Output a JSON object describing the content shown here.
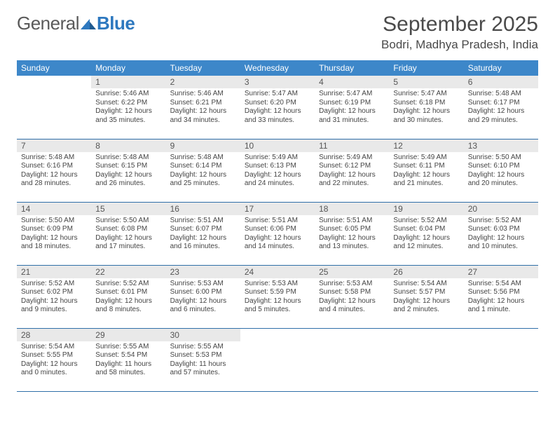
{
  "logo": {
    "part1": "General",
    "part2": "Blue"
  },
  "title": "September 2025",
  "subtitle": "Bodri, Madhya Pradesh, India",
  "colors": {
    "header_bg": "#3d87c9",
    "header_text": "#ffffff",
    "daynum_bg": "#e9e9e9",
    "border": "#2f6fa8",
    "text": "#444444",
    "logo_blue": "#2d78bf",
    "logo_grey": "#5a5a5a"
  },
  "typography": {
    "title_fontsize": 30,
    "subtitle_fontsize": 17,
    "th_fontsize": 12,
    "daynum_fontsize": 12,
    "body_fontsize": 10
  },
  "weekday_labels": [
    "Sunday",
    "Monday",
    "Tuesday",
    "Wednesday",
    "Thursday",
    "Friday",
    "Saturday"
  ],
  "first_weekday_index": 1,
  "days": [
    {
      "n": 1,
      "sunrise": "5:46 AM",
      "sunset": "6:22 PM",
      "daylight": "12 hours and 35 minutes."
    },
    {
      "n": 2,
      "sunrise": "5:46 AM",
      "sunset": "6:21 PM",
      "daylight": "12 hours and 34 minutes."
    },
    {
      "n": 3,
      "sunrise": "5:47 AM",
      "sunset": "6:20 PM",
      "daylight": "12 hours and 33 minutes."
    },
    {
      "n": 4,
      "sunrise": "5:47 AM",
      "sunset": "6:19 PM",
      "daylight": "12 hours and 31 minutes."
    },
    {
      "n": 5,
      "sunrise": "5:47 AM",
      "sunset": "6:18 PM",
      "daylight": "12 hours and 30 minutes."
    },
    {
      "n": 6,
      "sunrise": "5:48 AM",
      "sunset": "6:17 PM",
      "daylight": "12 hours and 29 minutes."
    },
    {
      "n": 7,
      "sunrise": "5:48 AM",
      "sunset": "6:16 PM",
      "daylight": "12 hours and 28 minutes."
    },
    {
      "n": 8,
      "sunrise": "5:48 AM",
      "sunset": "6:15 PM",
      "daylight": "12 hours and 26 minutes."
    },
    {
      "n": 9,
      "sunrise": "5:48 AM",
      "sunset": "6:14 PM",
      "daylight": "12 hours and 25 minutes."
    },
    {
      "n": 10,
      "sunrise": "5:49 AM",
      "sunset": "6:13 PM",
      "daylight": "12 hours and 24 minutes."
    },
    {
      "n": 11,
      "sunrise": "5:49 AM",
      "sunset": "6:12 PM",
      "daylight": "12 hours and 22 minutes."
    },
    {
      "n": 12,
      "sunrise": "5:49 AM",
      "sunset": "6:11 PM",
      "daylight": "12 hours and 21 minutes."
    },
    {
      "n": 13,
      "sunrise": "5:50 AM",
      "sunset": "6:10 PM",
      "daylight": "12 hours and 20 minutes."
    },
    {
      "n": 14,
      "sunrise": "5:50 AM",
      "sunset": "6:09 PM",
      "daylight": "12 hours and 18 minutes."
    },
    {
      "n": 15,
      "sunrise": "5:50 AM",
      "sunset": "6:08 PM",
      "daylight": "12 hours and 17 minutes."
    },
    {
      "n": 16,
      "sunrise": "5:51 AM",
      "sunset": "6:07 PM",
      "daylight": "12 hours and 16 minutes."
    },
    {
      "n": 17,
      "sunrise": "5:51 AM",
      "sunset": "6:06 PM",
      "daylight": "12 hours and 14 minutes."
    },
    {
      "n": 18,
      "sunrise": "5:51 AM",
      "sunset": "6:05 PM",
      "daylight": "12 hours and 13 minutes."
    },
    {
      "n": 19,
      "sunrise": "5:52 AM",
      "sunset": "6:04 PM",
      "daylight": "12 hours and 12 minutes."
    },
    {
      "n": 20,
      "sunrise": "5:52 AM",
      "sunset": "6:03 PM",
      "daylight": "12 hours and 10 minutes."
    },
    {
      "n": 21,
      "sunrise": "5:52 AM",
      "sunset": "6:02 PM",
      "daylight": "12 hours and 9 minutes."
    },
    {
      "n": 22,
      "sunrise": "5:52 AM",
      "sunset": "6:01 PM",
      "daylight": "12 hours and 8 minutes."
    },
    {
      "n": 23,
      "sunrise": "5:53 AM",
      "sunset": "6:00 PM",
      "daylight": "12 hours and 6 minutes."
    },
    {
      "n": 24,
      "sunrise": "5:53 AM",
      "sunset": "5:59 PM",
      "daylight": "12 hours and 5 minutes."
    },
    {
      "n": 25,
      "sunrise": "5:53 AM",
      "sunset": "5:58 PM",
      "daylight": "12 hours and 4 minutes."
    },
    {
      "n": 26,
      "sunrise": "5:54 AM",
      "sunset": "5:57 PM",
      "daylight": "12 hours and 2 minutes."
    },
    {
      "n": 27,
      "sunrise": "5:54 AM",
      "sunset": "5:56 PM",
      "daylight": "12 hours and 1 minute."
    },
    {
      "n": 28,
      "sunrise": "5:54 AM",
      "sunset": "5:55 PM",
      "daylight": "12 hours and 0 minutes."
    },
    {
      "n": 29,
      "sunrise": "5:55 AM",
      "sunset": "5:54 PM",
      "daylight": "11 hours and 58 minutes."
    },
    {
      "n": 30,
      "sunrise": "5:55 AM",
      "sunset": "5:53 PM",
      "daylight": "11 hours and 57 minutes."
    }
  ],
  "labels": {
    "sunrise": "Sunrise:",
    "sunset": "Sunset:",
    "daylight": "Daylight:"
  }
}
